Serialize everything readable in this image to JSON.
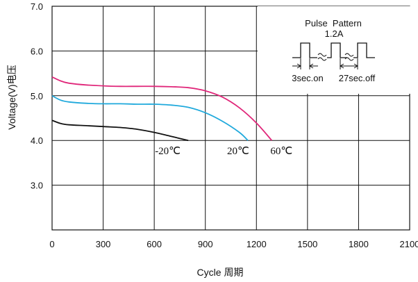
{
  "chart_data": {
    "type": "line",
    "xlabel": "Cycle 周期",
    "ylabel": "Voltage(V)电压",
    "xlim": [
      0,
      2100
    ],
    "ylim": [
      2.0,
      7.0
    ],
    "x_ticks": [
      "0",
      "300",
      "600",
      "900",
      "1200",
      "1500",
      "1800",
      "2100"
    ],
    "y_ticks": [
      "3.0",
      "4.0",
      "5.0",
      "6.0",
      "7.0"
    ],
    "grid": true,
    "series": [
      {
        "name": "-20℃",
        "color": "#111111",
        "points": [
          [
            0,
            4.45
          ],
          [
            50,
            4.38
          ],
          [
            100,
            4.35
          ],
          [
            200,
            4.33
          ],
          [
            300,
            4.31
          ],
          [
            400,
            4.29
          ],
          [
            500,
            4.25
          ],
          [
            600,
            4.18
          ],
          [
            700,
            4.09
          ],
          [
            800,
            4.0
          ]
        ]
      },
      {
        "name": "20℃",
        "color": "#1fa9dc",
        "points": [
          [
            0,
            5.0
          ],
          [
            50,
            4.9
          ],
          [
            100,
            4.86
          ],
          [
            200,
            4.83
          ],
          [
            300,
            4.82
          ],
          [
            400,
            4.82
          ],
          [
            500,
            4.81
          ],
          [
            600,
            4.81
          ],
          [
            700,
            4.79
          ],
          [
            800,
            4.74
          ],
          [
            900,
            4.62
          ],
          [
            1000,
            4.43
          ],
          [
            1100,
            4.18
          ],
          [
            1150,
            4.0
          ]
        ]
      },
      {
        "name": "60℃",
        "color": "#e0277a",
        "points": [
          [
            0,
            5.42
          ],
          [
            50,
            5.33
          ],
          [
            100,
            5.28
          ],
          [
            200,
            5.24
          ],
          [
            300,
            5.22
          ],
          [
            400,
            5.21
          ],
          [
            500,
            5.21
          ],
          [
            600,
            5.21
          ],
          [
            700,
            5.2
          ],
          [
            800,
            5.18
          ],
          [
            900,
            5.11
          ],
          [
            1000,
            4.97
          ],
          [
            1100,
            4.73
          ],
          [
            1200,
            4.39
          ],
          [
            1290,
            4.0
          ]
        ]
      }
    ],
    "inset": {
      "title": "Pulse  Pattern",
      "current": "1.2A",
      "on_label": "3sec.on",
      "off_label": "27sec.off"
    }
  }
}
